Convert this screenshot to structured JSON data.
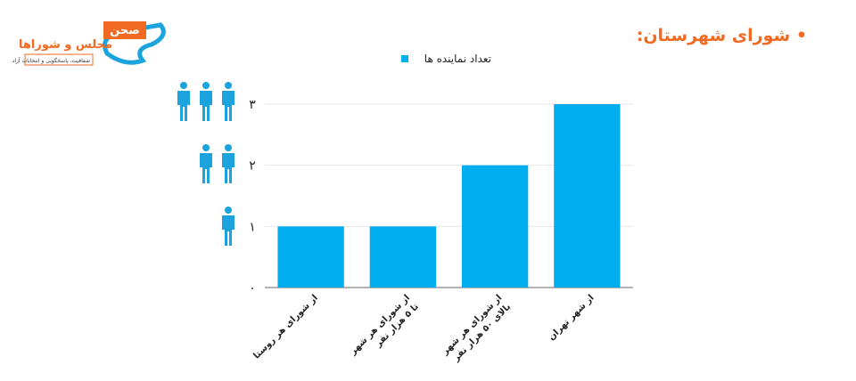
{
  "logo": {
    "brand": "صحن",
    "name": "مجلس و شوراها",
    "tagline": "شفافیت، پاسخگویی و انتخابات آزاد"
  },
  "chart_data": {
    "type": "bar",
    "title": "• شورای شهرستان:",
    "categories": [
      "از شورای هر روستا",
      "از شورای هر شهر\nتا ۵ هزار نفر",
      "از شورای هر شهر\nبالای ۵۰ هزار نفر",
      "از شهر تهران"
    ],
    "series": [
      {
        "name": "تعداد نماینده ها",
        "color": "#00aeef",
        "values": [
          1,
          1,
          2,
          3
        ]
      }
    ],
    "ylim": [
      0,
      3
    ],
    "yticks": [
      {
        "value": 0,
        "label": "۰"
      },
      {
        "value": 1,
        "label": "۱"
      },
      {
        "value": 2,
        "label": "۲"
      },
      {
        "value": 3,
        "label": "۳"
      }
    ],
    "grid": true
  }
}
